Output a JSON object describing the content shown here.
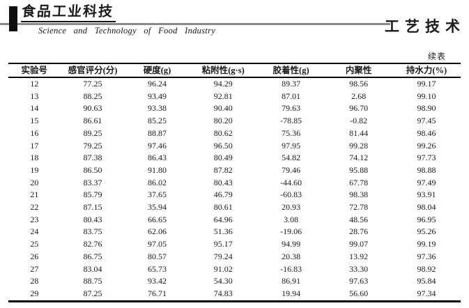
{
  "journal": {
    "logo_cn": "食品工业科技",
    "logo_en": "Science and Technology of Food Industry",
    "section_cn": "工艺技术"
  },
  "table": {
    "continued_label": "续表",
    "columns": [
      "实验号",
      "感官评分(分)",
      "硬度(g)",
      "粘附性(g·s)",
      "胶着性(g)",
      "内聚性",
      "持水力(%)"
    ],
    "rows": [
      [
        "12",
        "77.25",
        "96.24",
        "94.29",
        "89.37",
        "98.56",
        "99.17"
      ],
      [
        "13",
        "88.25",
        "93.49",
        "92.81",
        "87.01",
        "2.68",
        "99.10"
      ],
      [
        "14",
        "90.63",
        "93.38",
        "90.40",
        "79.63",
        "96.70",
        "98.90"
      ],
      [
        "15",
        "86.61",
        "85.25",
        "80.20",
        "-78.85",
        "-0.82",
        "97.45"
      ],
      [
        "16",
        "89.25",
        "88.87",
        "80.62",
        "75.36",
        "81.44",
        "98.46"
      ],
      [
        "17",
        "79.25",
        "97.46",
        "96.50",
        "97.95",
        "99.28",
        "99.26"
      ],
      [
        "18",
        "87.38",
        "86.43",
        "80.49",
        "54.82",
        "74.12",
        "97.73"
      ],
      [
        "19",
        "86.50",
        "91.80",
        "87.82",
        "79.46",
        "95.88",
        "98.88"
      ],
      [
        "20",
        "83.37",
        "86.02",
        "80.43",
        "-44.60",
        "67.78",
        "97.49"
      ],
      [
        "21",
        "85.79",
        "37.65",
        "46.79",
        "-60.83",
        "98.38",
        "93.91"
      ],
      [
        "22",
        "87.15",
        "35.94",
        "80.61",
        "20.93",
        "72.78",
        "98.04"
      ],
      [
        "23",
        "80.43",
        "66.65",
        "64.96",
        "3.08",
        "48.56",
        "96.95"
      ],
      [
        "24",
        "83.75",
        "62.06",
        "51.36",
        "-19.06",
        "28.76",
        "95.26"
      ],
      [
        "25",
        "82.76",
        "97.05",
        "95.17",
        "94.99",
        "99.07",
        "99.19"
      ],
      [
        "26",
        "86.75",
        "80.57",
        "79.24",
        "20.38",
        "13.92",
        "97.36"
      ],
      [
        "27",
        "83.04",
        "65.73",
        "91.02",
        "-16.83",
        "33.30",
        "98.92"
      ],
      [
        "28",
        "88.75",
        "93.42",
        "54.30",
        "86.91",
        "97.63",
        "95.84"
      ],
      [
        "29",
        "87.25",
        "76.71",
        "74.83",
        "19.94",
        "56.60",
        "97.34"
      ]
    ]
  },
  "colors": {
    "ink": "#1a1a1a",
    "rule_gray": "#8a8a8a"
  }
}
